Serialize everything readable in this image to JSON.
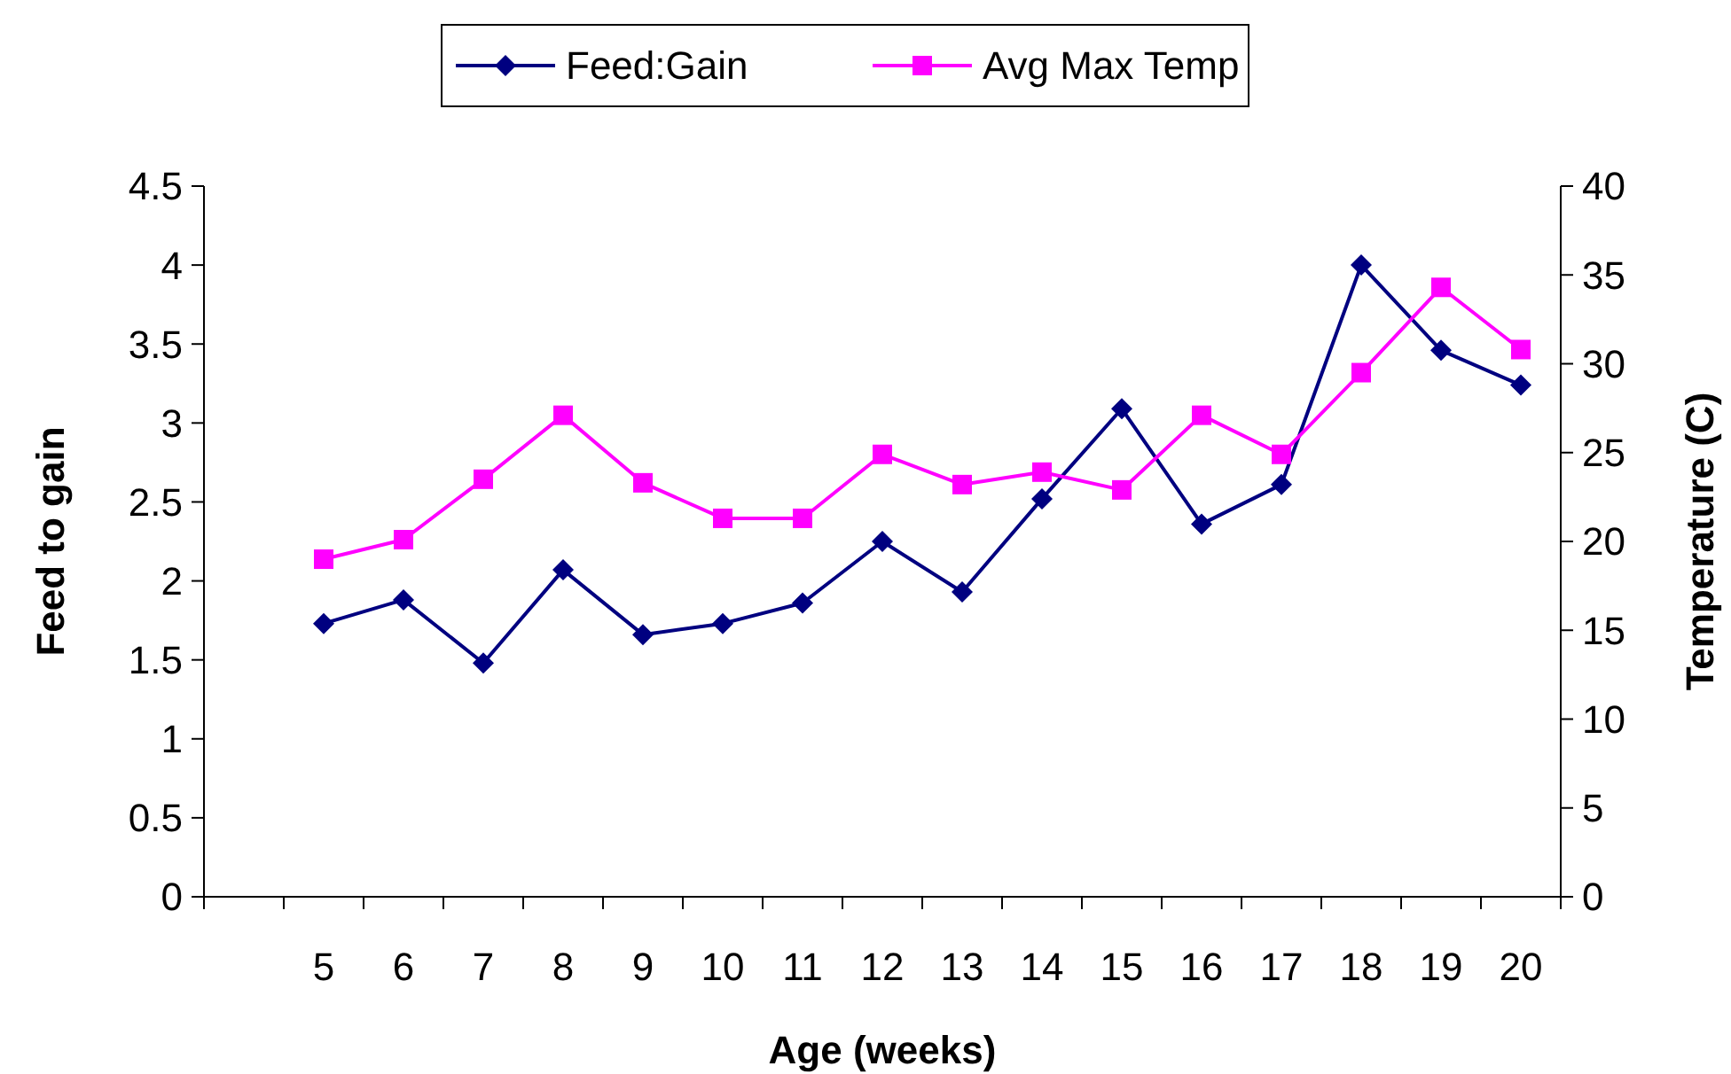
{
  "chart_data": {
    "type": "line",
    "xlabel": "Age (weeks)",
    "ylabel": "Feed to gain",
    "y2label": "Temperature (C)",
    "categories": [
      null,
      "5",
      "6",
      "7",
      "8",
      "9",
      "10",
      "11",
      "12",
      "13",
      "14",
      "15",
      "16",
      "17",
      "18",
      "19",
      "20"
    ],
    "series": [
      {
        "name": "Feed:Gain",
        "color": "#000080",
        "marker": "diamond",
        "values": [
          null,
          1.73,
          1.88,
          1.48,
          2.07,
          1.66,
          1.73,
          1.86,
          2.25,
          1.93,
          2.52,
          3.09,
          2.36,
          2.61,
          4.0,
          3.46,
          3.24
        ]
      },
      {
        "name": "Avg Max Temp",
        "color": "#ff00ff",
        "marker": "square",
        "axis": "y2",
        "values": [
          null,
          19.0,
          20.1,
          23.5,
          27.1,
          23.3,
          21.3,
          21.3,
          24.9,
          23.2,
          23.9,
          22.9,
          27.1,
          24.9,
          29.5,
          34.3,
          30.8
        ]
      }
    ],
    "ylim": [
      0,
      4.5
    ],
    "yticks": [
      0,
      0.5,
      1,
      1.5,
      2,
      2.5,
      3,
      3.5,
      4,
      4.5
    ],
    "y2lim": [
      0,
      40
    ],
    "y2ticks": [
      0,
      5,
      10,
      15,
      20,
      25,
      30,
      35,
      40
    ],
    "grid": false,
    "legend": "top",
    "line_style": "solid"
  }
}
